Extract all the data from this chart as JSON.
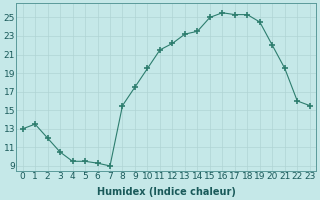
{
  "x": [
    0,
    1,
    2,
    3,
    4,
    5,
    6,
    7,
    8,
    9,
    10,
    11,
    12,
    13,
    14,
    15,
    16,
    17,
    18,
    19,
    20,
    21,
    22,
    23
  ],
  "y": [
    13,
    13.5,
    12,
    10.5,
    9.5,
    9.5,
    9.3,
    9.0,
    15.5,
    17.5,
    19.5,
    21.5,
    22.2,
    23.2,
    23.5,
    25.0,
    25.5,
    25.3,
    25.3,
    24.5,
    22.0,
    19.5,
    16.0,
    15.5
  ],
  "line_color": "#2d7d6e",
  "marker": "+",
  "marker_size": 4,
  "marker_lw": 1.2,
  "background_color": "#c5e8e8",
  "grid_color_major": "#b0d4d4",
  "grid_color_minor": "#c0dcdc",
  "ylabel_ticks": [
    9,
    11,
    13,
    15,
    17,
    19,
    21,
    23,
    25
  ],
  "xlabel": "Humidex (Indice chaleur)",
  "xlim": [
    -0.5,
    23.5
  ],
  "ylim": [
    8.5,
    26.5
  ],
  "axis_label_fontsize": 7,
  "tick_fontsize": 6.5
}
